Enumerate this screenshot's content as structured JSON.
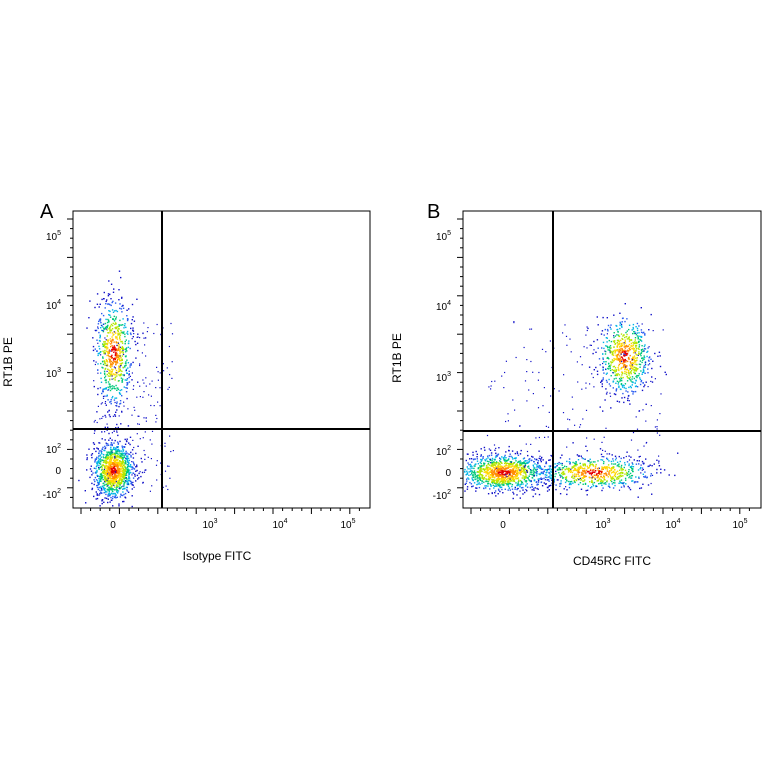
{
  "chart_data": [
    {
      "type": "scatter",
      "panel_label": "A",
      "xlabel": "Isotype FITC",
      "ylabel": "RT1B PE",
      "x_scale": "biexponential",
      "y_scale": "biexponential",
      "x_ticks": [
        {
          "value": 0,
          "base": "0",
          "exp": ""
        },
        {
          "value": 1000,
          "base": "10",
          "exp": "3"
        },
        {
          "value": 10000,
          "base": "10",
          "exp": "4"
        },
        {
          "value": 100000,
          "base": "10",
          "exp": "5"
        }
      ],
      "y_ticks": [
        {
          "value": 100000,
          "base": "10",
          "exp": "5"
        },
        {
          "value": 10000,
          "base": "10",
          "exp": "4"
        },
        {
          "value": 1000,
          "base": "10",
          "exp": "3"
        },
        {
          "value": 100,
          "base": "10",
          "exp": "2"
        },
        {
          "value": 0,
          "base": "0",
          "exp": ""
        },
        {
          "value": -100,
          "base": "-10",
          "exp": "2"
        }
      ],
      "quadrant_gate": {
        "x": 250,
        "y": 180
      },
      "populations": [
        {
          "name": "",
          "x_center": 0,
          "y_center": 0,
          "relative_density": "very high"
        },
        {
          "name": "",
          "x_center": 0,
          "y_center": 2000,
          "relative_density": "high"
        }
      ]
    },
    {
      "type": "scatter",
      "panel_label": "B",
      "xlabel": "CD45RC FITC",
      "ylabel": "RT1B PE",
      "x_scale": "biexponential",
      "y_scale": "biexponential",
      "x_ticks": [
        {
          "value": 0,
          "base": "0",
          "exp": ""
        },
        {
          "value": 1000,
          "base": "10",
          "exp": "3"
        },
        {
          "value": 10000,
          "base": "10",
          "exp": "4"
        },
        {
          "value": 100000,
          "base": "10",
          "exp": "5"
        }
      ],
      "y_ticks": [
        {
          "value": 100000,
          "base": "10",
          "exp": "5"
        },
        {
          "value": 10000,
          "base": "10",
          "exp": "4"
        },
        {
          "value": 1000,
          "base": "10",
          "exp": "3"
        },
        {
          "value": 100,
          "base": "10",
          "exp": "2"
        },
        {
          "value": 0,
          "base": "0",
          "exp": ""
        },
        {
          "value": -100,
          "base": "-10",
          "exp": "2"
        }
      ],
      "quadrant_gate": {
        "x": 200,
        "y": 180
      },
      "populations": [
        {
          "name": "",
          "x_center": 0,
          "y_center": 0,
          "relative_density": "very high"
        },
        {
          "name": "",
          "x_center": 500,
          "y_center": 0,
          "relative_density": "high"
        },
        {
          "name": "",
          "x_center": 2000,
          "y_center": 2000,
          "relative_density": "high"
        }
      ]
    }
  ],
  "colors": {
    "axis": "#000000",
    "density_scale": [
      "#1010c8",
      "#2a5cf0",
      "#00b4e6",
      "#00c878",
      "#b4e600",
      "#ffd700",
      "#ff8c00",
      "#e60000"
    ]
  }
}
